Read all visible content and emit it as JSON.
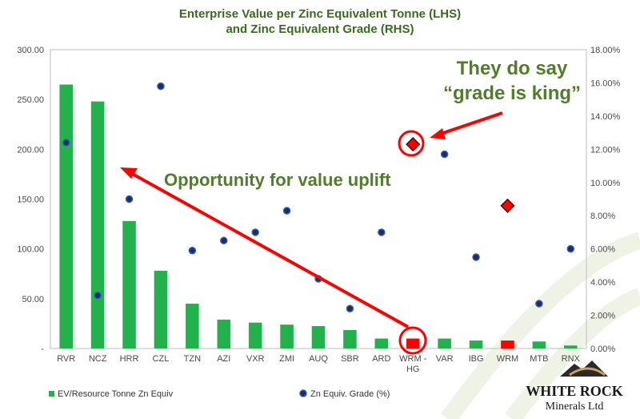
{
  "chart_data": {
    "type": "bar",
    "title_lines": [
      "Enterprise Value per Zinc Equivalent Tonne (LHS)",
      "and Zinc Equivalent Grade (RHS)"
    ],
    "categories": [
      "RVR",
      "NCZ",
      "HRR",
      "CZL",
      "TZN",
      "AZI",
      "VXR",
      "ZMI",
      "AUQ",
      "SBR",
      "ARD",
      "WRM - HG",
      "VAR",
      "IBG",
      "WRM",
      "MTB",
      "RNX"
    ],
    "category_lines": [
      [
        "RVR"
      ],
      [
        "NCZ"
      ],
      [
        "HRR"
      ],
      [
        "CZL"
      ],
      [
        "TZN"
      ],
      [
        "AZI"
      ],
      [
        "VXR"
      ],
      [
        "ZMI"
      ],
      [
        "AUQ"
      ],
      [
        "SBR"
      ],
      [
        "ARD"
      ],
      [
        "WRM -",
        "HG"
      ],
      [
        "VAR"
      ],
      [
        "IBG"
      ],
      [
        "WRM"
      ],
      [
        "MTB"
      ],
      [
        "RNX"
      ]
    ],
    "series": [
      {
        "name": "EV/Resource Tonne Zn Equiv",
        "axis": "left",
        "type": "bar",
        "values": [
          265,
          248,
          128,
          78,
          45,
          29,
          26,
          24,
          22.5,
          18.5,
          10,
          10,
          10,
          8,
          8,
          7,
          3
        ],
        "highlight_indices": [
          11,
          14
        ]
      },
      {
        "name": "Zn Equiv. Grade (%)",
        "axis": "right",
        "type": "scatter",
        "values": [
          12.4,
          3.2,
          9.0,
          15.8,
          5.9,
          6.5,
          7.0,
          8.3,
          4.2,
          2.4,
          7.0,
          12.3,
          11.7,
          5.5,
          8.6,
          2.7,
          6.0
        ],
        "highlight_indices": [
          11,
          14
        ]
      }
    ],
    "y_left": {
      "lim": [
        0,
        300
      ],
      "ticks": [
        0,
        50,
        100,
        150,
        200,
        250,
        300
      ],
      "tick_labels": [
        "-",
        "50.00",
        "100.00",
        "150.00",
        "200.00",
        "250.00",
        "300.00"
      ]
    },
    "y_right": {
      "lim": [
        0,
        18
      ],
      "ticks": [
        0,
        2,
        4,
        6,
        8,
        10,
        12,
        14,
        16,
        18
      ],
      "tick_labels": [
        "0.00%",
        "2.00%",
        "4.00%",
        "6.00%",
        "8.00%",
        "10.00%",
        "12.00%",
        "14.00%",
        "16.00%",
        "18.00%"
      ]
    },
    "grid": false,
    "legend": "bottom",
    "annotations": {
      "opportunity": "Opportunity for value uplift",
      "grade_line1": "They do say",
      "grade_line2": "“grade is king”"
    },
    "colors": {
      "bar": "#22b24c",
      "bar_highlight": "#ff0000",
      "dot_fill": "#1f2a6b",
      "dot_edge": "#2f5fb3",
      "title": "#3a6b1f",
      "annotation_green": "#4f7f2a",
      "arrow": "#ff0000",
      "axis_text": "#4a4a4a"
    }
  },
  "logo": {
    "line1": "WHITE ROCK",
    "line2": "Minerals Ltd"
  }
}
